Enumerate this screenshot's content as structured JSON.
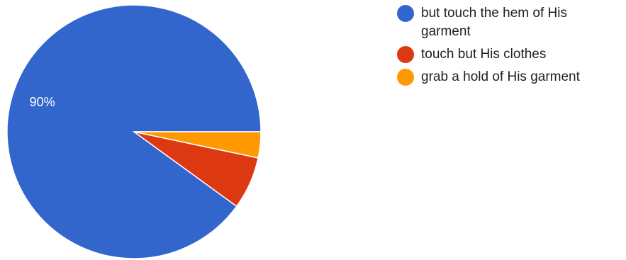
{
  "chart_data": {
    "type": "pie",
    "categories": [
      "but touch the hem of His garment",
      "touch but His clothes",
      "grab a hold of His garment"
    ],
    "values": [
      90,
      6.7,
      3.3
    ],
    "data_labels": [
      "90%",
      "",
      ""
    ],
    "colors": [
      "#3366cc",
      "#dc3912",
      "#ff9900"
    ],
    "legend_position": "right"
  }
}
